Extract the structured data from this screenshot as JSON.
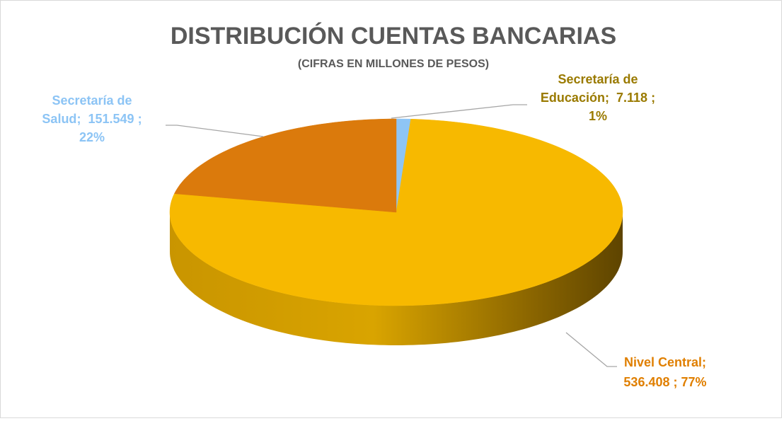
{
  "chart_data": {
    "type": "pie3d",
    "title": "DISTRIBUCIÓN CUENTAS BANCARIAS",
    "subtitle": "(CIFRAS EN MILLONES DE PESOS)",
    "categories": [
      "Secretaría de Educación",
      "Nivel Central",
      "Secretaría de Salud"
    ],
    "values": [
      7118,
      536408,
      151549
    ],
    "value_labels": [
      "7.118",
      "536.408",
      "151.549"
    ],
    "percent_labels": [
      "1%",
      "77%",
      "22%"
    ],
    "separator": ";",
    "colors": [
      "#8ec5f5",
      "#f7b900",
      "#db7a0c"
    ],
    "label_colors": [
      "#9a7a00",
      "#e07f00",
      "#8cc4f5"
    ]
  }
}
